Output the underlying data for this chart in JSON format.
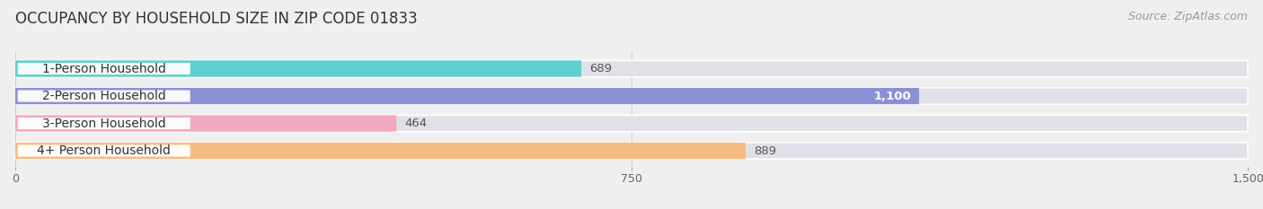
{
  "title": "OCCUPANCY BY HOUSEHOLD SIZE IN ZIP CODE 01833",
  "source": "Source: ZipAtlas.com",
  "categories": [
    "1-Person Household",
    "2-Person Household",
    "3-Person Household",
    "4+ Person Household"
  ],
  "values": [
    689,
    1100,
    464,
    889
  ],
  "bar_colors": [
    "#5ecece",
    "#8b8fd4",
    "#f2a8bf",
    "#f6bb80"
  ],
  "value_labels": [
    "689",
    "1,100",
    "464",
    "889"
  ],
  "value_label_colors": [
    "#555555",
    "#ffffff",
    "#555555",
    "#555555"
  ],
  "xlim": [
    0,
    1500
  ],
  "xticks": [
    0,
    750,
    1500
  ],
  "xtick_labels": [
    "0",
    "750",
    "1,500"
  ],
  "background_color": "#efefef",
  "bar_background_color": "#e0e0e8",
  "title_fontsize": 12,
  "source_fontsize": 9,
  "label_fontsize": 10,
  "value_fontsize": 9.5
}
